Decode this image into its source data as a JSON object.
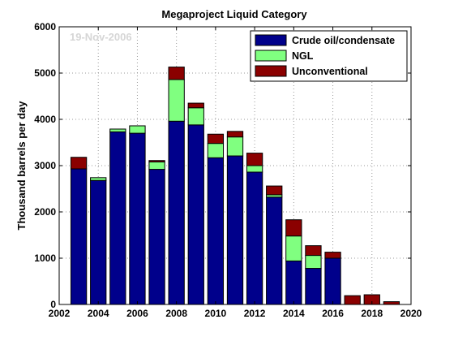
{
  "chart_data": {
    "type": "bar",
    "stacked": true,
    "title": "Megaproject Liquid Category",
    "watermark": "19-Nov-2006",
    "xlabel": "",
    "ylabel": "Thousand barrels per day",
    "xlim": [
      2002,
      2020
    ],
    "ylim": [
      0,
      6000
    ],
    "xticks": [
      2002,
      2004,
      2006,
      2008,
      2010,
      2012,
      2014,
      2016,
      2018,
      2020
    ],
    "yticks": [
      0,
      1000,
      2000,
      3000,
      4000,
      5000,
      6000
    ],
    "grid": true,
    "legend_position": "top-right",
    "x": [
      2003,
      2004,
      2005,
      2006,
      2007,
      2008,
      2009,
      2010,
      2011,
      2012,
      2013,
      2014,
      2015,
      2016,
      2017,
      2018,
      2019
    ],
    "series": [
      {
        "name": "Crude oil/condensate",
        "color": "#00008b",
        "values": [
          2930,
          2680,
          3730,
          3700,
          2920,
          3960,
          3880,
          3170,
          3210,
          2860,
          2320,
          940,
          780,
          1000,
          0,
          0,
          0
        ]
      },
      {
        "name": "NGL",
        "color": "#80ff80",
        "values": [
          0,
          60,
          60,
          160,
          160,
          900,
          370,
          310,
          410,
          140,
          50,
          540,
          280,
          0,
          0,
          0,
          0
        ]
      },
      {
        "name": "Unconventional",
        "color": "#8b0000",
        "values": [
          250,
          0,
          0,
          0,
          30,
          270,
          100,
          200,
          120,
          270,
          190,
          350,
          210,
          130,
          190,
          210,
          60
        ]
      }
    ]
  }
}
